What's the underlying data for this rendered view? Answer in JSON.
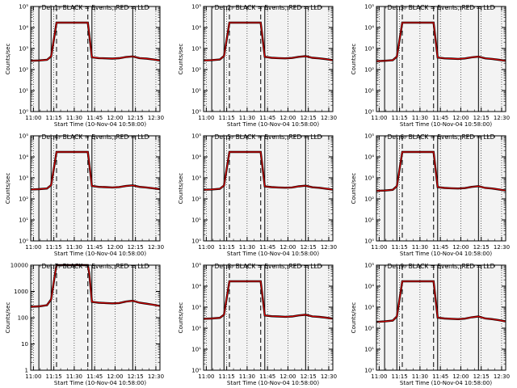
{
  "chart_data": {
    "type": "line",
    "x_tick_labels": [
      "11:00",
      "11:15",
      "11:30",
      "11:45",
      "12:00",
      "12:15",
      "12:30"
    ],
    "x_range_minutes_after_start": [
      0,
      95
    ],
    "y_scale": "log",
    "colors": {
      "events": "#000000",
      "lld": "#dd0000"
    },
    "panels": [
      {
        "title": "Det 1r BLACK = Events, RED = LLD",
        "xlabel": "Start Time (10-Nov-04 10:58:00)",
        "ylabel": "Counts/sec",
        "ylim": [
          1,
          100000
        ],
        "y_tick_labels": [
          "10⁰",
          "10¹",
          "10²",
          "10³",
          "10⁴",
          "10⁵"
        ],
        "series": [
          {
            "x": [
              0,
              6,
              12,
              15,
              19,
              22,
              30,
              38,
              42,
              45,
              50,
              55,
              60,
              65,
              70,
              75,
              80,
              85,
              90,
              95
            ],
            "y": [
              260,
              270,
              290,
              420,
              17000,
              17000,
              17000,
              17000,
              17000,
              380,
              350,
              340,
              330,
              345,
              390,
              420,
              350,
              330,
              300,
              270
            ]
          }
        ]
      },
      {
        "title": "Det 2r BLACK = Events, RED = LLD",
        "xlabel": "Start Time (10-Nov-04 10:58:00)",
        "ylabel": "Counts/sec",
        "ylim": [
          1,
          100000
        ],
        "y_tick_labels": [
          "10⁰",
          "10¹",
          "10²",
          "10³",
          "10⁴",
          "10⁵"
        ],
        "series": [
          {
            "x": [
              0,
              6,
              12,
              15,
              19,
              22,
              30,
              38,
              42,
              45,
              50,
              55,
              60,
              65,
              70,
              75,
              80,
              85,
              90,
              95
            ],
            "y": [
              270,
              280,
              300,
              440,
              17000,
              17000,
              17000,
              17000,
              17000,
              400,
              360,
              350,
              340,
              355,
              400,
              430,
              360,
              340,
              310,
              280
            ]
          }
        ]
      },
      {
        "title": "Det 3r BLACK = Events, RED = LLD",
        "xlabel": "Start Time (10-Nov-04 10:58:00)",
        "ylabel": "Counts/sec",
        "ylim": [
          1,
          100000
        ],
        "y_tick_labels": [
          "10⁰",
          "10¹",
          "10²",
          "10³",
          "10⁴",
          "10⁵"
        ],
        "series": [
          {
            "x": [
              0,
              6,
              12,
              15,
              19,
              22,
              30,
              38,
              42,
              45,
              50,
              55,
              60,
              65,
              70,
              75,
              80,
              85,
              90,
              95
            ],
            "y": [
              250,
              260,
              280,
              410,
              17000,
              17000,
              17000,
              17000,
              17000,
              370,
              340,
              330,
              320,
              335,
              380,
              410,
              340,
              320,
              290,
              260
            ]
          }
        ]
      },
      {
        "title": "Det 4r BLACK = Events, RED = LLD",
        "xlabel": "Start Time (10-Nov-04 10:58:00)",
        "ylabel": "Counts/sec",
        "ylim": [
          1,
          100000
        ],
        "y_tick_labels": [
          "10⁰",
          "10¹",
          "10²",
          "10³",
          "10⁴",
          "10⁵"
        ],
        "series": [
          {
            "x": [
              0,
              6,
              12,
              15,
              19,
              22,
              30,
              38,
              42,
              45,
              50,
              55,
              60,
              65,
              70,
              75,
              80,
              85,
              90,
              95
            ],
            "y": [
              280,
              290,
              310,
              450,
              17000,
              17000,
              17000,
              17000,
              17000,
              410,
              370,
              360,
              350,
              365,
              410,
              440,
              370,
              350,
              320,
              290
            ]
          }
        ]
      },
      {
        "title": "Det 5r BLACK = Events, RED = LLD",
        "xlabel": "Start Time (10-Nov-04 10:58:00)",
        "ylabel": "Counts/sec",
        "ylim": [
          1,
          100000
        ],
        "y_tick_labels": [
          "10⁰",
          "10¹",
          "10²",
          "10³",
          "10⁴",
          "10⁵"
        ],
        "series": [
          {
            "x": [
              0,
              6,
              12,
              15,
              19,
              22,
              30,
              38,
              42,
              45,
              50,
              55,
              60,
              65,
              70,
              75,
              80,
              85,
              90,
              95
            ],
            "y": [
              270,
              280,
              300,
              430,
              17000,
              17000,
              17000,
              17000,
              17000,
              390,
              360,
              350,
              340,
              350,
              395,
              425,
              355,
              335,
              305,
              275
            ]
          }
        ]
      },
      {
        "title": "Det 6r BLACK = Events, RED = LLD",
        "xlabel": "Start Time (10-Nov-04 10:58:00)",
        "ylabel": "Counts/sec",
        "ylim": [
          1,
          100000
        ],
        "y_tick_labels": [
          "10⁰",
          "10¹",
          "10²",
          "10³",
          "10⁴",
          "10⁵"
        ],
        "series": [
          {
            "x": [
              0,
              6,
              12,
              15,
              19,
              22,
              30,
              38,
              42,
              45,
              50,
              55,
              60,
              65,
              70,
              75,
              80,
              85,
              90,
              95
            ],
            "y": [
              240,
              250,
              270,
              400,
              17000,
              17000,
              17000,
              17000,
              17000,
              360,
              330,
              320,
              310,
              325,
              370,
              400,
              330,
              310,
              280,
              250
            ]
          }
        ]
      },
      {
        "title": "Det 7r BLACK = Events, RED = LLD",
        "xlabel": "Start Time (10-Nov-04 10:58:00)",
        "ylabel": "Counts/sec",
        "ylim": [
          1,
          10000
        ],
        "y_tick_labels": [
          "1",
          "10",
          "100",
          "1000",
          "10000"
        ],
        "series": [
          {
            "x": [
              0,
              6,
              12,
              15,
              18,
              19,
              22,
              30,
              38,
              42,
              43,
              45,
              50,
              55,
              60,
              65,
              70,
              75,
              80,
              85,
              90,
              95
            ],
            "y": [
              260,
              270,
              300,
              500,
              5000,
              10000,
              10000,
              10000,
              10000,
              10000,
              5000,
              400,
              370,
              360,
              350,
              360,
              410,
              440,
              370,
              340,
              310,
              280
            ]
          }
        ]
      },
      {
        "title": "Det 8r BLACK = Events, RED = LLD",
        "xlabel": "Start Time (10-Nov-04 10:58:00)",
        "ylabel": "Counts/sec",
        "ylim": [
          1,
          100000
        ],
        "y_tick_labels": [
          "10⁰",
          "10¹",
          "10²",
          "10³",
          "10⁴",
          "10⁵"
        ],
        "series": [
          {
            "x": [
              0,
              6,
              12,
              15,
              19,
              22,
              30,
              38,
              42,
              45,
              50,
              55,
              60,
              65,
              70,
              75,
              80,
              85,
              90,
              95
            ],
            "y": [
              280,
              290,
              310,
              440,
              17000,
              17000,
              17000,
              17000,
              17000,
              400,
              370,
              360,
              350,
              360,
              405,
              435,
              365,
              345,
              315,
              285
            ]
          }
        ]
      },
      {
        "title": "Det 9r BLACK = Events, RED = LLD",
        "xlabel": "Start Time (10-Nov-04 10:58:00)",
        "ylabel": "Counts/sec",
        "ylim": [
          1,
          100000
        ],
        "y_tick_labels": [
          "10⁰",
          "10¹",
          "10²",
          "10³",
          "10⁴",
          "10⁵"
        ],
        "series": [
          {
            "x": [
              0,
              6,
              12,
              15,
              19,
              22,
              30,
              38,
              42,
              45,
              50,
              55,
              60,
              65,
              70,
              75,
              80,
              85,
              90,
              95
            ],
            "y": [
              200,
              210,
              230,
              360,
              17000,
              17000,
              17000,
              17000,
              17000,
              320,
              290,
              280,
              270,
              285,
              330,
              360,
              290,
              270,
              240,
              210
            ]
          }
        ]
      }
    ],
    "solid_vertical_lines_minutes": [
      6,
      15,
      45,
      75
    ],
    "dashed_vertical_lines_minutes": [
      19,
      42
    ],
    "grid": false,
    "legend": "none"
  }
}
